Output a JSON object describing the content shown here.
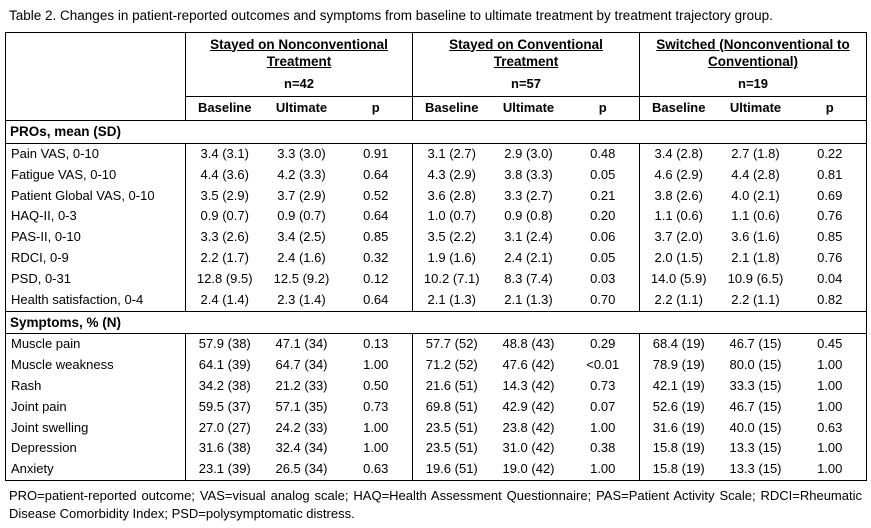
{
  "caption": "Table 2. Changes in patient-reported outcomes and symptoms from baseline to ultimate treatment by treatment trajectory group.",
  "footnote": "PRO=patient-reported outcome; VAS=visual analog scale; HAQ=Health Assessment Questionnaire; PAS=Patient Activity Scale; RDCI=Rheumatic Disease Comorbidity Index; PSD=polysymptomatic distress.",
  "table": {
    "groups": [
      {
        "title": "Stayed on Nonconventional Treatment",
        "n": "n=42"
      },
      {
        "title": "Stayed on Conventional Treatment",
        "n": "n=57"
      },
      {
        "title": "Switched (Nonconventional to Conventional)",
        "n": "n=19"
      }
    ],
    "subheaders": [
      "Baseline",
      "Ultimate",
      "p"
    ],
    "sections": [
      {
        "header": "PROs, mean (SD)",
        "rows": [
          {
            "label": "Pain VAS, 0-10",
            "values": [
              "3.4 (3.1)",
              "3.3 (3.0)",
              "0.91",
              "3.1 (2.7)",
              "2.9 (3.0)",
              "0.48",
              "3.4 (2.8)",
              "2.7 (1.8)",
              "0.22"
            ]
          },
          {
            "label": "Fatigue VAS, 0-10",
            "values": [
              "4.4 (3.6)",
              "4.2 (3.3)",
              "0.64",
              "4.3 (2.9)",
              "3.8 (3.3)",
              "0.05",
              "4.6 (2.9)",
              "4.4 (2.8)",
              "0.81"
            ]
          },
          {
            "label": "Patient Global VAS, 0-10",
            "values": [
              "3.5 (2.9)",
              "3.7 (2.9)",
              "0.52",
              "3.6 (2.8)",
              "3.3 (2.7)",
              "0.21",
              "3.8 (2.6)",
              "4.0 (2.1)",
              "0.69"
            ]
          },
          {
            "label": "HAQ-II, 0-3",
            "values": [
              "0.9 (0.7)",
              "0.9 (0.7)",
              "0.64",
              "1.0 (0.7)",
              "0.9 (0.8)",
              "0.20",
              "1.1 (0.6)",
              "1.1 (0.6)",
              "0.76"
            ]
          },
          {
            "label": "PAS-II, 0-10",
            "values": [
              "3.3 (2.6)",
              "3.4 (2.5)",
              "0.85",
              "3.5 (2.2)",
              "3.1 (2.4)",
              "0.06",
              "3.7 (2.0)",
              "3.6 (1.6)",
              "0.85"
            ]
          },
          {
            "label": "RDCI, 0-9",
            "values": [
              "2.2 (1.7)",
              "2.4 (1.6)",
              "0.32",
              "1.9 (1.6)",
              "2.4 (2.1)",
              "0.05",
              "2.0 (1.5)",
              "2.1 (1.8)",
              "0.76"
            ]
          },
          {
            "label": "PSD, 0-31",
            "values": [
              "12.8 (9.5)",
              "12.5 (9.2)",
              "0.12",
              "10.2 (7.1)",
              "8.3 (7.4)",
              "0.03",
              "14.0 (5.9)",
              "10.9 (6.5)",
              "0.04"
            ]
          },
          {
            "label": "Health satisfaction, 0-4",
            "values": [
              "2.4 (1.4)",
              "2.3 (1.4)",
              "0.64",
              "2.1 (1.3)",
              "2.1 (1.3)",
              "0.70",
              "2.2 (1.1)",
              "2.2 (1.1)",
              "0.82"
            ]
          }
        ]
      },
      {
        "header": "Symptoms, % (N)",
        "rows": [
          {
            "label": "Muscle pain",
            "values": [
              "57.9 (38)",
              "47.1 (34)",
              "0.13",
              "57.7 (52)",
              "48.8 (43)",
              "0.29",
              "68.4 (19)",
              "46.7 (15)",
              "0.45"
            ]
          },
          {
            "label": "Muscle weakness",
            "values": [
              "64.1 (39)",
              "64.7 (34)",
              "1.00",
              "71.2 (52)",
              "47.6 (42)",
              "<0.01",
              "78.9 (19)",
              "80.0 (15)",
              "1.00"
            ]
          },
          {
            "label": "Rash",
            "values": [
              "34.2 (38)",
              "21.2 (33)",
              "0.50",
              "21.6 (51)",
              "14.3 (42)",
              "0.73",
              "42.1 (19)",
              "33.3 (15)",
              "1.00"
            ]
          },
          {
            "label": "Joint pain",
            "values": [
              "59.5 (37)",
              "57.1 (35)",
              "0.73",
              "69.8 (51)",
              "42.9 (42)",
              "0.07",
              "52.6 (19)",
              "46.7 (15)",
              "1.00"
            ]
          },
          {
            "label": "Joint swelling",
            "values": [
              "27.0 (27)",
              "24.2 (33)",
              "1.00",
              "23.5 (51)",
              "23.8 (42)",
              "1.00",
              "31.6 (19)",
              "40.0 (15)",
              "0.63"
            ]
          },
          {
            "label": "Depression",
            "values": [
              "31.6 (38)",
              "32.4 (34)",
              "1.00",
              "23.5 (51)",
              "31.0 (42)",
              "0.38",
              "15.8 (19)",
              "13.3 (15)",
              "1.00"
            ]
          },
          {
            "label": "Anxiety",
            "values": [
              "23.1 (39)",
              "26.5 (34)",
              "0.63",
              "19.6 (51)",
              "19.0 (42)",
              "1.00",
              "15.8 (19)",
              "13.3 (15)",
              "1.00"
            ]
          }
        ]
      }
    ]
  }
}
